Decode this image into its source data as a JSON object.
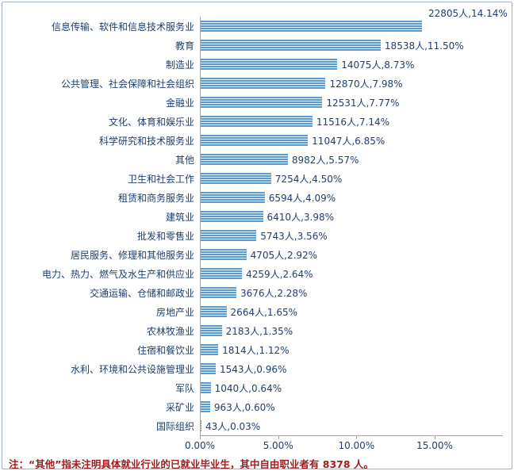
{
  "colors": {
    "bar": "#5b9bd5",
    "bar_bg": "#eaf3fb",
    "text": "#1f3f6e",
    "note": "#a21c1c",
    "frame_border": "#9fb1d2",
    "axis_line": "#a6a6a6"
  },
  "footnote": {
    "text": "注：“其他”指未注明具体就业行业的已就业毕业生，其中自由职业者有 8378 人。"
  },
  "chart_data": {
    "type": "bar",
    "orientation": "horizontal",
    "title": "",
    "xlabel": "",
    "ylabel": "",
    "xlim": [
      0,
      15
    ],
    "x_ticks": [
      "0.00%",
      "5.00%",
      "10.00%",
      "15.00%"
    ],
    "grid": false,
    "legend": false,
    "categories": [
      "信息传输、软件和信息技术服务业",
      "教育",
      "制造业",
      "公共管理、社会保障和社会组织",
      "金融业",
      "文化、体育和娱乐业",
      "科学研究和技术服务业",
      "其他",
      "卫生和社会工作",
      "租赁和商务服务业",
      "建筑业",
      "批发和零售业",
      "居民服务、修理和其他服务业",
      "电力、热力、燃气及水生产和供应业",
      "交通运输、仓储和邮政业",
      "房地产业",
      "农林牧渔业",
      "住宿和餐饮业",
      "水利、环境和公共设施管理业",
      "军队",
      "采矿业",
      "国际组织"
    ],
    "counts": [
      22805,
      18538,
      14075,
      12870,
      12531,
      11516,
      11047,
      8982,
      7254,
      6594,
      6410,
      5743,
      4705,
      4259,
      3676,
      2664,
      2183,
      1814,
      1543,
      1040,
      963,
      43
    ],
    "percents": [
      14.14,
      11.5,
      8.73,
      7.98,
      7.77,
      7.14,
      6.85,
      5.57,
      4.5,
      4.09,
      3.98,
      3.56,
      2.92,
      2.64,
      2.28,
      1.65,
      1.35,
      1.12,
      0.96,
      0.64,
      0.6,
      0.03
    ],
    "value_labels": [
      "22805人,14.14%",
      "18538人,11.50%",
      "14075人,8.73%",
      "12870人,7.98%",
      "12531人,7.77%",
      "11516人,7.14%",
      "11047人,6.85%",
      "8982人,5.57%",
      "7254人,4.50%",
      "6594人,4.09%",
      "6410人,3.98%",
      "5743人,3.56%",
      "4705人,2.92%",
      "4259人,2.64%",
      "3676人,2.28%",
      "2664人,1.65%",
      "2183人,1.35%",
      "1814人,1.12%",
      "1543人,0.96%",
      "1040人,0.64%",
      "963人,0.60%",
      "43人,0.03%"
    ]
  }
}
